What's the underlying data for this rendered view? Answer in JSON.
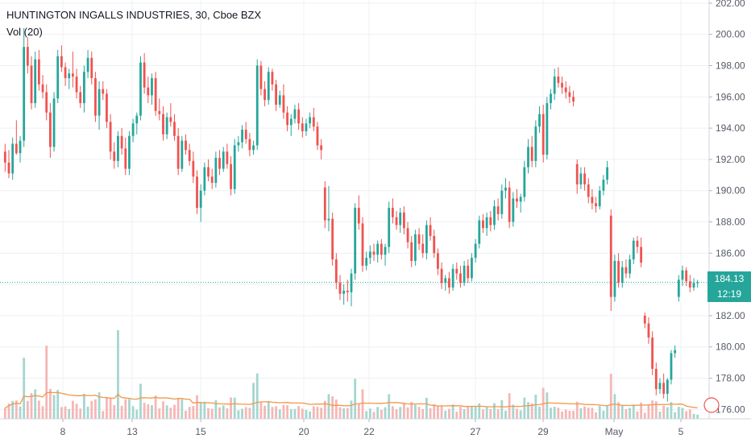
{
  "legend": {
    "symbol_line": "HUNTINGTON INGALLS INDUSTRIES, 30, Cboe BZX",
    "volume_line": "Vol (20)"
  },
  "last_price": {
    "label": "184.13",
    "countdown": "12:19",
    "value": 184.13
  },
  "colors": {
    "up": "#26a69a",
    "down": "#ef5350",
    "vol_up": "#a5d6cf",
    "vol_down": "#f5b7b5",
    "vol_ma": "#f2994a",
    "grid": "#eef0f3",
    "axis_text": "#555a66"
  },
  "chart_data": {
    "type": "candlestick",
    "y_ticks": [
      "176.00",
      "178.00",
      "180.00",
      "182.00",
      "184.00",
      "186.00",
      "188.00",
      "190.00",
      "192.00",
      "194.00",
      "196.00",
      "198.00",
      "200.00",
      "202.00"
    ],
    "y_tick_values": [
      176,
      178,
      180,
      182,
      184,
      186,
      188,
      190,
      192,
      194,
      196,
      198,
      200,
      202
    ],
    "ylim": [
      175.4,
      202.2
    ],
    "x_ticks": [
      {
        "label": "8",
        "x": 78
      },
      {
        "label": "13",
        "x": 164
      },
      {
        "label": "15",
        "x": 249
      },
      {
        "label": "20",
        "x": 377
      },
      {
        "label": "22",
        "x": 458
      },
      {
        "label": "27",
        "x": 590
      },
      {
        "label": "29",
        "x": 674
      },
      {
        "label": "May",
        "x": 762
      },
      {
        "label": "5",
        "x": 845
      }
    ],
    "grid": true,
    "ohlc": [
      [
        192.5,
        193.0,
        191.2,
        191.8
      ],
      [
        191.8,
        192.6,
        190.8,
        191.1
      ],
      [
        191.1,
        193.4,
        190.7,
        193.0
      ],
      [
        193.0,
        194.5,
        192.3,
        192.4
      ],
      [
        192.4,
        193.5,
        191.8,
        193.2
      ],
      [
        193.2,
        200.4,
        192.8,
        199.2
      ],
      [
        199.2,
        199.8,
        197.5,
        198.0
      ],
      [
        198.0,
        198.6,
        195.2,
        195.6
      ],
      [
        195.6,
        198.9,
        195.3,
        198.4
      ],
      [
        198.4,
        199.0,
        196.4,
        196.8
      ],
      [
        196.8,
        197.4,
        195.9,
        196.3
      ],
      [
        196.3,
        196.8,
        194.5,
        195.0
      ],
      [
        195.0,
        195.6,
        192.1,
        192.8
      ],
      [
        192.8,
        196.3,
        192.5,
        195.9
      ],
      [
        195.9,
        199.0,
        195.6,
        198.6
      ],
      [
        198.6,
        199.3,
        197.6,
        197.9
      ],
      [
        197.9,
        198.2,
        196.7,
        197.2
      ],
      [
        197.2,
        197.8,
        196.5,
        197.5
      ],
      [
        197.5,
        198.9,
        196.6,
        197.3
      ],
      [
        197.3,
        197.8,
        195.9,
        196.3
      ],
      [
        196.3,
        196.7,
        195.3,
        195.6
      ],
      [
        195.6,
        198.0,
        195.0,
        197.6
      ],
      [
        197.6,
        199.0,
        197.2,
        198.5
      ],
      [
        198.5,
        198.9,
        196.8,
        197.2
      ],
      [
        197.2,
        197.6,
        194.4,
        194.8
      ],
      [
        194.8,
        197.0,
        193.9,
        196.5
      ],
      [
        196.5,
        197.0,
        195.8,
        196.2
      ],
      [
        196.2,
        196.5,
        194.0,
        194.4
      ],
      [
        194.4,
        194.9,
        192.0,
        192.5
      ],
      [
        192.5,
        193.1,
        191.4,
        191.9
      ],
      [
        191.9,
        193.8,
        191.5,
        193.5
      ],
      [
        193.5,
        194.0,
        192.3,
        192.7
      ],
      [
        192.7,
        193.4,
        191.0,
        191.4
      ],
      [
        191.4,
        193.8,
        191.0,
        193.5
      ],
      [
        193.5,
        194.6,
        193.1,
        194.3
      ],
      [
        194.3,
        195.0,
        193.6,
        194.8
      ],
      [
        194.8,
        198.6,
        194.5,
        198.2
      ],
      [
        198.2,
        198.8,
        196.2,
        196.6
      ],
      [
        196.6,
        197.3,
        195.6,
        196.1
      ],
      [
        196.1,
        197.5,
        195.5,
        197.2
      ],
      [
        197.2,
        197.6,
        194.8,
        195.1
      ],
      [
        195.1,
        195.9,
        194.5,
        194.9
      ],
      [
        194.9,
        195.4,
        193.2,
        193.6
      ],
      [
        193.6,
        195.0,
        193.3,
        194.7
      ],
      [
        194.7,
        195.6,
        194.1,
        194.4
      ],
      [
        194.4,
        194.9,
        193.2,
        193.5
      ],
      [
        193.5,
        194.0,
        191.0,
        191.4
      ],
      [
        191.4,
        193.5,
        191.2,
        193.2
      ],
      [
        193.2,
        193.6,
        192.3,
        192.6
      ],
      [
        192.6,
        193.0,
        191.6,
        191.9
      ],
      [
        191.9,
        192.5,
        190.5,
        190.9
      ],
      [
        190.9,
        191.3,
        188.5,
        188.9
      ],
      [
        188.9,
        190.4,
        188.0,
        190.0
      ],
      [
        190.0,
        191.8,
        189.7,
        191.5
      ],
      [
        191.5,
        192.0,
        190.6,
        190.9
      ],
      [
        190.9,
        191.4,
        190.1,
        190.5
      ],
      [
        190.5,
        192.5,
        190.2,
        192.1
      ],
      [
        192.1,
        192.6,
        191.0,
        191.4
      ],
      [
        191.4,
        192.8,
        191.2,
        192.5
      ],
      [
        192.5,
        193.0,
        191.4,
        191.7
      ],
      [
        191.7,
        192.2,
        189.7,
        190.1
      ],
      [
        190.1,
        193.3,
        189.8,
        192.9
      ],
      [
        192.9,
        193.5,
        192.5,
        193.1
      ],
      [
        193.1,
        194.2,
        192.7,
        193.9
      ],
      [
        193.9,
        194.4,
        193.0,
        193.3
      ],
      [
        193.3,
        193.7,
        192.2,
        192.6
      ],
      [
        192.6,
        193.2,
        192.3,
        192.9
      ],
      [
        192.9,
        198.4,
        192.6,
        198.0
      ],
      [
        198.0,
        198.3,
        196.1,
        196.5
      ],
      [
        196.5,
        197.0,
        195.4,
        195.8
      ],
      [
        195.8,
        197.9,
        195.5,
        197.6
      ],
      [
        197.6,
        197.8,
        196.4,
        196.8
      ],
      [
        196.8,
        197.1,
        195.1,
        195.5
      ],
      [
        195.5,
        196.4,
        195.3,
        196.1
      ],
      [
        196.1,
        196.8,
        194.6,
        195.0
      ],
      [
        195.0,
        195.4,
        193.8,
        194.2
      ],
      [
        194.2,
        194.9,
        193.5,
        194.6
      ],
      [
        194.6,
        195.5,
        194.3,
        195.2
      ],
      [
        195.2,
        195.6,
        193.9,
        194.3
      ],
      [
        194.3,
        194.7,
        193.4,
        193.8
      ],
      [
        193.8,
        194.6,
        193.5,
        194.3
      ],
      [
        194.3,
        195.0,
        194.0,
        194.7
      ],
      [
        194.7,
        195.3,
        193.8,
        194.1
      ],
      [
        194.1,
        194.4,
        192.6,
        192.9
      ],
      [
        192.9,
        193.3,
        192.0,
        192.6
      ],
      [
        190.2,
        190.6,
        187.6,
        188.1
      ],
      [
        188.1,
        190.3,
        187.4,
        188.2
      ],
      [
        188.2,
        188.6,
        185.2,
        185.6
      ],
      [
        185.6,
        186.0,
        183.7,
        184.1
      ],
      [
        184.1,
        184.6,
        183.0,
        183.4
      ],
      [
        183.4,
        184.0,
        182.7,
        183.6
      ],
      [
        183.6,
        184.3,
        182.9,
        183.5
      ],
      [
        183.5,
        185.0,
        182.6,
        184.7
      ],
      [
        184.7,
        189.2,
        184.3,
        188.9
      ],
      [
        188.9,
        189.7,
        187.5,
        187.9
      ],
      [
        187.9,
        188.3,
        184.8,
        185.2
      ],
      [
        185.2,
        186.1,
        184.9,
        185.7
      ],
      [
        185.7,
        186.5,
        185.3,
        186.1
      ],
      [
        186.1,
        186.6,
        185.5,
        185.9
      ],
      [
        185.9,
        186.8,
        185.4,
        186.6
      ],
      [
        186.6,
        186.9,
        185.6,
        185.9
      ],
      [
        185.9,
        186.6,
        185.2,
        186.4
      ],
      [
        186.4,
        189.3,
        186.0,
        188.9
      ],
      [
        188.9,
        189.5,
        187.9,
        188.3
      ],
      [
        188.3,
        188.7,
        187.5,
        187.8
      ],
      [
        187.8,
        188.9,
        187.3,
        188.6
      ],
      [
        188.6,
        189.0,
        187.2,
        187.6
      ],
      [
        187.6,
        188.0,
        186.3,
        186.7
      ],
      [
        186.7,
        187.1,
        185.1,
        185.5
      ],
      [
        185.5,
        187.5,
        185.2,
        187.2
      ],
      [
        187.2,
        187.6,
        186.2,
        186.6
      ],
      [
        186.6,
        187.2,
        185.7,
        186.0
      ],
      [
        186.0,
        188.1,
        185.6,
        187.8
      ],
      [
        187.8,
        188.3,
        186.8,
        187.1
      ],
      [
        187.1,
        187.5,
        185.7,
        186.0
      ],
      [
        186.0,
        186.3,
        184.6,
        185.0
      ],
      [
        185.0,
        185.4,
        183.7,
        184.1
      ],
      [
        184.1,
        184.6,
        183.6,
        184.4
      ],
      [
        184.4,
        184.8,
        183.4,
        183.8
      ],
      [
        183.8,
        185.3,
        183.6,
        185.0
      ],
      [
        185.0,
        185.4,
        184.3,
        184.7
      ],
      [
        184.7,
        185.2,
        183.8,
        184.1
      ],
      [
        184.1,
        185.5,
        183.9,
        185.2
      ],
      [
        185.2,
        185.6,
        184.1,
        184.4
      ],
      [
        184.4,
        186.0,
        184.2,
        185.7
      ],
      [
        185.7,
        186.9,
        185.4,
        186.6
      ],
      [
        186.6,
        188.4,
        186.3,
        188.1
      ],
      [
        188.1,
        188.5,
        187.3,
        187.6
      ],
      [
        187.6,
        188.6,
        187.1,
        188.3
      ],
      [
        188.3,
        188.7,
        187.4,
        187.8
      ],
      [
        187.8,
        189.4,
        187.5,
        189.0
      ],
      [
        189.0,
        189.5,
        188.1,
        188.5
      ],
      [
        188.5,
        190.4,
        188.2,
        190.0
      ],
      [
        190.0,
        190.8,
        189.5,
        190.2
      ],
      [
        190.2,
        190.6,
        187.6,
        188.0
      ],
      [
        188.0,
        189.9,
        187.7,
        189.5
      ],
      [
        189.5,
        190.1,
        188.9,
        189.3
      ],
      [
        189.3,
        189.8,
        188.6,
        189.6
      ],
      [
        189.6,
        191.9,
        189.3,
        191.5
      ],
      [
        191.5,
        193.3,
        191.1,
        192.8
      ],
      [
        192.8,
        193.5,
        191.5,
        191.9
      ],
      [
        191.9,
        194.5,
        191.5,
        194.1
      ],
      [
        194.1,
        195.4,
        193.7,
        194.9
      ],
      [
        194.9,
        195.5,
        191.8,
        192.3
      ],
      [
        192.3,
        196.0,
        192.0,
        195.6
      ],
      [
        195.6,
        196.5,
        195.2,
        196.2
      ],
      [
        196.2,
        197.8,
        195.8,
        197.3
      ],
      [
        197.3,
        197.9,
        196.6,
        196.9
      ],
      [
        196.9,
        197.3,
        196.2,
        196.6
      ],
      [
        196.6,
        197.0,
        195.9,
        196.3
      ],
      [
        196.3,
        196.7,
        195.6,
        196.0
      ],
      [
        196.0,
        196.4,
        195.4,
        195.7
      ],
      [
        191.7,
        192.0,
        189.8,
        190.4
      ],
      [
        190.4,
        191.5,
        190.1,
        191.1
      ],
      [
        191.1,
        191.5,
        190.0,
        190.4
      ],
      [
        190.4,
        190.8,
        189.2,
        189.6
      ],
      [
        189.6,
        190.1,
        188.8,
        189.2
      ],
      [
        189.2,
        189.6,
        188.6,
        189.0
      ],
      [
        189.0,
        190.3,
        188.8,
        190.0
      ],
      [
        190.0,
        191.0,
        189.7,
        190.7
      ],
      [
        190.7,
        191.9,
        190.4,
        191.5
      ],
      [
        188.4,
        188.8,
        182.3,
        183.2
      ],
      [
        183.2,
        185.9,
        182.9,
        185.5
      ],
      [
        185.5,
        186.0,
        183.8,
        184.1
      ],
      [
        184.1,
        185.5,
        183.8,
        185.1
      ],
      [
        185.1,
        185.6,
        184.4,
        184.7
      ],
      [
        184.7,
        185.9,
        184.4,
        185.6
      ],
      [
        185.6,
        187.0,
        185.3,
        186.8
      ],
      [
        186.8,
        187.1,
        186.0,
        186.4
      ],
      [
        186.4,
        187.0,
        185.1,
        185.4
      ],
      [
        182.0,
        182.2,
        181.2,
        181.5
      ],
      [
        181.5,
        181.9,
        180.2,
        180.6
      ],
      [
        180.6,
        181.0,
        178.2,
        178.6
      ],
      [
        178.6,
        179.0,
        176.9,
        177.3
      ],
      [
        177.3,
        178.0,
        177.0,
        177.7
      ],
      [
        177.7,
        178.3,
        176.7,
        177.0
      ],
      [
        177.0,
        178.0,
        176.5,
        177.9
      ],
      [
        177.9,
        179.8,
        177.6,
        179.6
      ],
      [
        179.6,
        180.1,
        179.3,
        179.8
      ],
      [
        183.2,
        184.6,
        182.9,
        184.3
      ],
      [
        184.3,
        185.2,
        183.9,
        184.9
      ],
      [
        184.9,
        185.1,
        183.9,
        184.2
      ],
      [
        184.2,
        184.6,
        183.5,
        183.8
      ],
      [
        183.8,
        184.4,
        183.6,
        184.1
      ],
      [
        184.1,
        184.3,
        183.8,
        184.13
      ]
    ]
  }
}
